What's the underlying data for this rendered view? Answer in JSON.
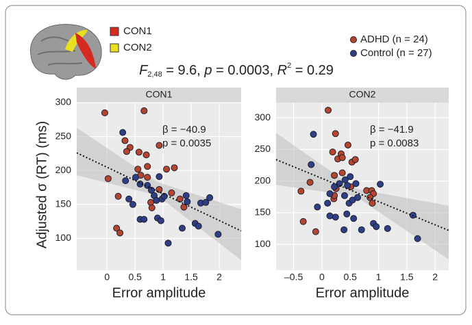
{
  "brain_legend": [
    {
      "label": "CON1",
      "color": "#d42a22"
    },
    {
      "label": "CON2",
      "color": "#e8e020"
    }
  ],
  "stats": [
    "F",
    "2,48",
    " = 9.6, ",
    "p",
    " = 0.0003, ",
    "R",
    "2",
    " = 0.29"
  ],
  "y_label": "Adjusted σ (RT) (ms)",
  "chart_data": [
    {
      "type": "scatter",
      "title": "CON1",
      "x_label": "Error amplitude",
      "xlim": [
        -0.54,
        2.39
      ],
      "ylim": [
        53,
        300
      ],
      "xticks": [
        0,
        0.5,
        1,
        1.5,
        2
      ],
      "yticks": [
        100,
        150,
        200,
        250,
        300
      ],
      "grid": true,
      "annotations": [
        "β = −40.9",
        "p = 0.0035"
      ],
      "fit": {
        "x": [
          -0.54,
          2.39
        ],
        "y": [
          226,
          111
        ]
      },
      "ci": {
        "x": [
          -0.54,
          0.9,
          2.39
        ],
        "upper": [
          263,
          183,
          143
        ],
        "lower": [
          193,
          163,
          68
        ]
      },
      "series": [
        {
          "name": "ADHD (n = 24)",
          "color": "#b5452f",
          "x": [
            -0.04,
            0.66,
            0.02,
            0.32,
            0.41,
            0.35,
            0.57,
            0.7,
            0.93,
            0.55,
            0.72,
            1.06,
            1.2,
            0.6,
            0.72,
            0.2,
            0.78,
            0.8,
            0.93,
            1.15,
            1.3,
            1.37,
            0.17,
            0.23
          ],
          "values": [
            285,
            288,
            188,
            244,
            234,
            228,
            227,
            223,
            237,
            202,
            206,
            202,
            204,
            193,
            190,
            162,
            153,
            145,
            172,
            167,
            158,
            146,
            115,
            108
          ]
        },
        {
          "name": "Control (n = 27)",
          "color": "#2f3f86",
          "x": [
            0.28,
            0.33,
            0.39,
            0.46,
            0.59,
            0.72,
            0.79,
            0.93,
            0.51,
            0.84,
            0.88,
            0.98,
            1.02,
            0.59,
            0.66,
            0.9,
            0.96,
            1.09,
            1.34,
            1.43,
            1.57,
            1.63,
            1.67,
            1.76,
            1.83,
            1.98,
            1.41
          ],
          "values": [
            256,
            185,
            158,
            150,
            180,
            178,
            171,
            191,
            190,
            163,
            156,
            158,
            162,
            128,
            128,
            130,
            126,
            93,
            115,
            154,
            122,
            118,
            152,
            153,
            160,
            106,
            163
          ]
        }
      ]
    },
    {
      "type": "scatter",
      "title": "CON2",
      "x_label": "Error amplitude",
      "xlim": [
        -0.81,
        2.24
      ],
      "ylim": [
        59,
        324
      ],
      "xticks": [
        {
          "value": -0.5,
          "label": "–0.5"
        },
        0,
        0.5,
        1,
        1.5,
        2
      ],
      "yticks": [
        100,
        150,
        200,
        250,
        300
      ],
      "grid": true,
      "annotations": [
        "β = −41.9",
        "p = 0.0083"
      ],
      "fit": {
        "x": [
          -0.81,
          2.24
        ],
        "y": [
          234,
          122
        ]
      },
      "ci": {
        "x": [
          -0.81,
          0.6,
          2.24
        ],
        "upper": [
          276,
          188,
          161
        ],
        "lower": [
          194,
          176,
          76
        ]
      },
      "series": [
        {
          "name": "ADHD (n = 24)",
          "color": "#b5452f",
          "x": [
            0.11,
            0.24,
            -0.37,
            -0.21,
            -0.33,
            -0.11,
            0.19,
            0.28,
            0.34,
            0.36,
            0.46,
            0.53,
            0.59,
            0.22,
            0.36,
            0.25,
            0.21,
            0.51,
            0.79,
            0.88,
            0.91,
            0.85,
            0.89,
            0.22
          ],
          "values": [
            312,
            275,
            184,
            198,
            136,
            120,
            246,
            235,
            243,
            237,
            257,
            230,
            234,
            209,
            213,
            188,
            172,
            191,
            185,
            185,
            180,
            174,
            165,
            177
          ]
        },
        {
          "name": "Control (n = 27)",
          "color": "#2f3f86",
          "x": [
            -0.15,
            -0.19,
            -0.08,
            0.14,
            0.22,
            0.31,
            0.41,
            0.45,
            0.5,
            0.6,
            0.4,
            0.48,
            0.54,
            0.63,
            0.44,
            0.56,
            0.39,
            0.24,
            0.14,
            0.1,
            0.7,
            0.91,
            0.96,
            1.16,
            1.03,
            1.61,
            1.69
          ],
          "values": [
            274,
            226,
            159,
            180,
            191,
            196,
            202,
            193,
            207,
            196,
            177,
            165,
            170,
            174,
            148,
            141,
            123,
            143,
            145,
            165,
            123,
            133,
            128,
            125,
            195,
            146,
            109
          ]
        }
      ]
    }
  ]
}
